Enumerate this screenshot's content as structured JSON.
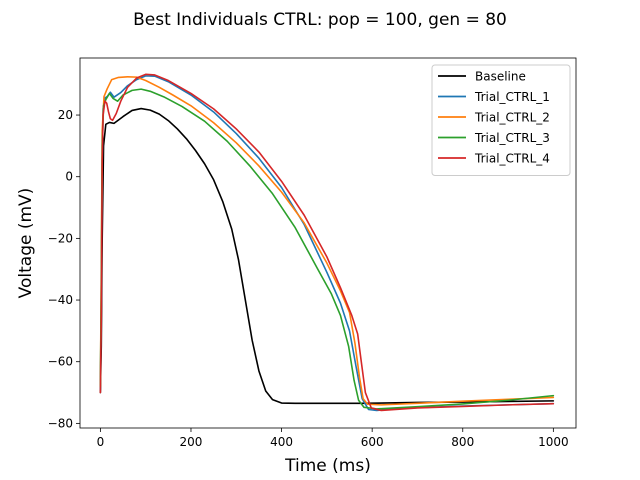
{
  "chart_data": {
    "type": "line",
    "title": "Best Individuals CTRL: pop = 100, gen = 80",
    "xlabel": "Time (ms)",
    "ylabel": "Voltage (mV)",
    "xlim": [
      -45,
      1050
    ],
    "ylim": [
      -81.5,
      38.5
    ],
    "xticks": [
      0,
      200,
      400,
      600,
      800,
      1000
    ],
    "yticks": [
      -80,
      -60,
      -40,
      -20,
      0,
      20
    ],
    "xtick_labels": [
      "0",
      "200",
      "400",
      "600",
      "800",
      "1000"
    ],
    "ytick_labels": [
      "−80",
      "−60",
      "−40",
      "−20",
      "0",
      "20"
    ],
    "grid": false,
    "legend_position": "upper right",
    "series": [
      {
        "name": "Baseline",
        "color": "#000000",
        "points": [
          [
            0,
            -70
          ],
          [
            2,
            -55
          ],
          [
            4,
            -20
          ],
          [
            7,
            10
          ],
          [
            12,
            17
          ],
          [
            20,
            17.6
          ],
          [
            30,
            17.3
          ],
          [
            50,
            19.5
          ],
          [
            70,
            21.5
          ],
          [
            90,
            22.1
          ],
          [
            110,
            21.6
          ],
          [
            130,
            20.3
          ],
          [
            150,
            18.2
          ],
          [
            170,
            15.5
          ],
          [
            190,
            12.3
          ],
          [
            210,
            8.5
          ],
          [
            230,
            4.2
          ],
          [
            250,
            -1.0
          ],
          [
            270,
            -8.0
          ],
          [
            290,
            -17.0
          ],
          [
            305,
            -27.0
          ],
          [
            320,
            -40.0
          ],
          [
            335,
            -53.0
          ],
          [
            350,
            -63.0
          ],
          [
            365,
            -69.5
          ],
          [
            380,
            -72.3
          ],
          [
            400,
            -73.4
          ],
          [
            430,
            -73.5
          ],
          [
            500,
            -73.5
          ],
          [
            580,
            -73.5
          ],
          [
            620,
            -73.4
          ],
          [
            700,
            -73.2
          ],
          [
            800,
            -73.1
          ],
          [
            900,
            -72.9
          ],
          [
            1000,
            -72.7
          ]
        ]
      },
      {
        "name": "Trial_CTRL_1",
        "color": "#1f77b4",
        "points": [
          [
            0,
            -69
          ],
          [
            2,
            -40
          ],
          [
            4,
            5
          ],
          [
            6,
            22
          ],
          [
            10,
            25.5
          ],
          [
            15,
            26
          ],
          [
            22,
            27.4
          ],
          [
            30,
            25.8
          ],
          [
            45,
            27.3
          ],
          [
            60,
            29.5
          ],
          [
            80,
            31.5
          ],
          [
            100,
            32.7
          ],
          [
            120,
            32.6
          ],
          [
            150,
            30.8
          ],
          [
            200,
            26.5
          ],
          [
            250,
            21.0
          ],
          [
            300,
            14.0
          ],
          [
            350,
            6.0
          ],
          [
            400,
            -3.5
          ],
          [
            450,
            -15.5
          ],
          [
            500,
            -31.0
          ],
          [
            530,
            -41.0
          ],
          [
            550,
            -50.0
          ],
          [
            565,
            -62.0
          ],
          [
            578,
            -72.0
          ],
          [
            592,
            -75.5
          ],
          [
            610,
            -75.8
          ],
          [
            650,
            -75.2
          ],
          [
            700,
            -74.9
          ],
          [
            800,
            -74.4
          ],
          [
            900,
            -74.0
          ],
          [
            1000,
            -73.6
          ]
        ]
      },
      {
        "name": "Trial_CTRL_2",
        "color": "#ff7f0e",
        "points": [
          [
            0,
            -68
          ],
          [
            2,
            -30
          ],
          [
            4,
            15
          ],
          [
            8,
            26
          ],
          [
            15,
            28.5
          ],
          [
            25,
            31.5
          ],
          [
            40,
            32.2
          ],
          [
            60,
            32.4
          ],
          [
            80,
            32.3
          ],
          [
            100,
            31.2
          ],
          [
            130,
            29.0
          ],
          [
            160,
            26.5
          ],
          [
            200,
            23.0
          ],
          [
            250,
            17.5
          ],
          [
            300,
            11.0
          ],
          [
            350,
            3.5
          ],
          [
            400,
            -5.0
          ],
          [
            450,
            -15.0
          ],
          [
            500,
            -28.0
          ],
          [
            530,
            -37.0
          ],
          [
            550,
            -44.0
          ],
          [
            562,
            -54.0
          ],
          [
            572,
            -65.0
          ],
          [
            580,
            -72.0
          ],
          [
            590,
            -73.8
          ],
          [
            620,
            -74.0
          ],
          [
            700,
            -73.5
          ],
          [
            800,
            -72.8
          ],
          [
            900,
            -72.2
          ],
          [
            1000,
            -71.6
          ]
        ]
      },
      {
        "name": "Trial_CTRL_3",
        "color": "#2ca02c",
        "points": [
          [
            0,
            -68
          ],
          [
            2,
            -35
          ],
          [
            4,
            10
          ],
          [
            7,
            23
          ],
          [
            12,
            25
          ],
          [
            20,
            27.0
          ],
          [
            28,
            25.4
          ],
          [
            38,
            24.5
          ],
          [
            50,
            26.5
          ],
          [
            70,
            28.0
          ],
          [
            90,
            28.4
          ],
          [
            110,
            27.7
          ],
          [
            140,
            25.9
          ],
          [
            180,
            22.8
          ],
          [
            230,
            18.0
          ],
          [
            280,
            11.5
          ],
          [
            330,
            3.5
          ],
          [
            380,
            -5.5
          ],
          [
            430,
            -16.5
          ],
          [
            480,
            -30.0
          ],
          [
            510,
            -38.0
          ],
          [
            530,
            -45.0
          ],
          [
            548,
            -55.0
          ],
          [
            560,
            -66.0
          ],
          [
            570,
            -72.5
          ],
          [
            582,
            -74.8
          ],
          [
            610,
            -75.3
          ],
          [
            700,
            -74.6
          ],
          [
            800,
            -73.7
          ],
          [
            900,
            -72.5
          ],
          [
            1000,
            -71.0
          ]
        ]
      },
      {
        "name": "Trial_CTRL_4",
        "color": "#d62728",
        "points": [
          [
            0,
            -70
          ],
          [
            2,
            -45
          ],
          [
            4,
            5
          ],
          [
            6,
            20
          ],
          [
            10,
            24.5
          ],
          [
            14,
            23.8
          ],
          [
            18,
            21.0
          ],
          [
            22,
            18.8
          ],
          [
            27,
            18.3
          ],
          [
            35,
            20.5
          ],
          [
            45,
            24.5
          ],
          [
            60,
            29.0
          ],
          [
            80,
            32.0
          ],
          [
            100,
            33.2
          ],
          [
            120,
            33.0
          ],
          [
            150,
            31.2
          ],
          [
            200,
            27.0
          ],
          [
            250,
            22.0
          ],
          [
            300,
            15.5
          ],
          [
            350,
            8.0
          ],
          [
            400,
            -1.5
          ],
          [
            450,
            -12.5
          ],
          [
            500,
            -26.0
          ],
          [
            530,
            -36.0
          ],
          [
            555,
            -45.0
          ],
          [
            568,
            -51.0
          ],
          [
            576,
            -60.0
          ],
          [
            585,
            -70.0
          ],
          [
            598,
            -75.0
          ],
          [
            620,
            -75.8
          ],
          [
            700,
            -75.0
          ],
          [
            800,
            -74.5
          ],
          [
            900,
            -74.0
          ],
          [
            1000,
            -73.6
          ]
        ]
      }
    ]
  }
}
